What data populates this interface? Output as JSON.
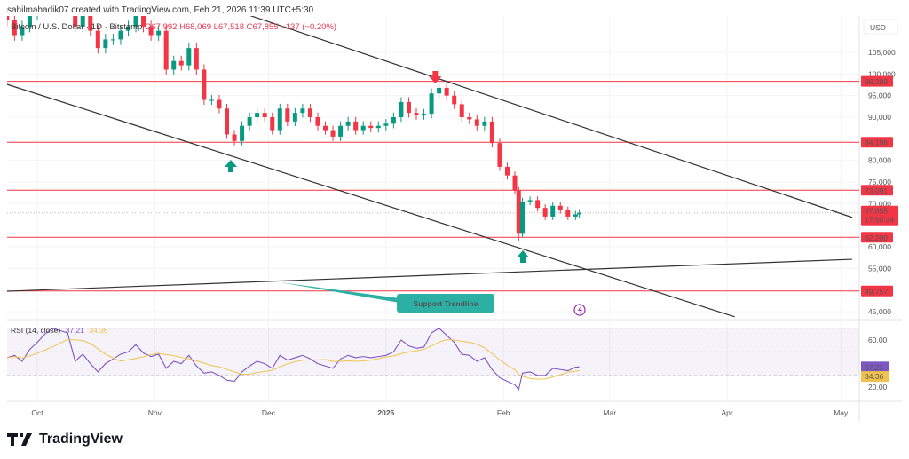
{
  "header": {
    "credit": "sahilmahadik07 created with TradingView.com, Feb 21, 2026 11:39 UTC+5:30"
  },
  "legend": {
    "symbol": "Bitcoin / U.S. Dollar · 1D · Bitstamp",
    "open": "O67,992",
    "high": "H68,069",
    "low": "L67,518",
    "close": "C67,855",
    "change": "−137 (−0.20%)"
  },
  "rsi_legend": {
    "label": "RSI (14, close)",
    "rsi": "37.21",
    "ma": "34.36"
  },
  "annotation": {
    "label": "Support Trendline"
  },
  "logo": {
    "text": "TradingView"
  },
  "colors": {
    "up": "#089981",
    "down": "#f23645",
    "level": "#f23645",
    "rsi": "#7e57c2",
    "rsi_ma": "#f0c34e",
    "annotation": "#2bb0a3"
  },
  "chart_data": [
    {
      "type": "candlestick",
      "currency_label": "USD",
      "ylim": [
        43000,
        117000
      ],
      "y_ticks": [
        45000,
        55000,
        60000,
        70000,
        75000,
        80000,
        90000,
        95000,
        100000,
        105000
      ],
      "y_tick_labels": [
        "45,000",
        "55,000",
        "60,000",
        "70,000",
        "75,000",
        "80,000",
        "90,000",
        "95,000",
        "100,000",
        "105,000"
      ],
      "x_ticks": [
        "2025-10-01",
        "2025-11-01",
        "2025-12-01",
        "2026-01-01",
        "2026-02-01",
        "2026-03-01",
        "2026-04-01",
        "2026-05-01"
      ],
      "x_tick_labels": [
        "Oct",
        "Nov",
        "Dec",
        "2026",
        "Feb",
        "Mar",
        "Apr",
        "May"
      ],
      "dates": [
        "2025-09-23",
        "2025-09-25",
        "2025-09-27",
        "2025-09-29",
        "2025-10-01",
        "2025-10-03",
        "2025-10-05",
        "2025-10-07",
        "2025-10-09",
        "2025-10-11",
        "2025-10-13",
        "2025-10-15",
        "2025-10-17",
        "2025-10-19",
        "2025-10-21",
        "2025-10-23",
        "2025-10-25",
        "2025-10-27",
        "2025-10-29",
        "2025-10-31",
        "2025-11-02",
        "2025-11-04",
        "2025-11-06",
        "2025-11-08",
        "2025-11-10",
        "2025-11-12",
        "2025-11-14",
        "2025-11-16",
        "2025-11-18",
        "2025-11-20",
        "2025-11-22",
        "2025-11-24",
        "2025-11-26",
        "2025-11-28",
        "2025-11-30",
        "2025-12-02",
        "2025-12-04",
        "2025-12-06",
        "2025-12-08",
        "2025-12-10",
        "2025-12-12",
        "2025-12-14",
        "2025-12-16",
        "2025-12-18",
        "2025-12-20",
        "2025-12-22",
        "2025-12-24",
        "2025-12-26",
        "2025-12-28",
        "2025-12-30",
        "2026-01-01",
        "2026-01-03",
        "2026-01-05",
        "2026-01-07",
        "2026-01-09",
        "2026-01-11",
        "2026-01-13",
        "2026-01-15",
        "2026-01-17",
        "2026-01-19",
        "2026-01-21",
        "2026-01-23",
        "2026-01-25",
        "2026-01-27",
        "2026-01-29",
        "2026-01-31",
        "2026-02-02",
        "2026-02-04",
        "2026-02-05",
        "2026-02-06",
        "2026-02-08",
        "2026-02-10",
        "2026-02-12",
        "2026-02-14",
        "2026-02-16",
        "2026-02-18",
        "2026-02-20",
        "2026-02-21"
      ],
      "close": [
        112500,
        109000,
        111000,
        114000,
        116000,
        120000,
        124000,
        121000,
        121000,
        111000,
        115000,
        110000,
        106000,
        108000,
        108000,
        110000,
        111000,
        114000,
        111000,
        109000,
        110000,
        101000,
        103000,
        102000,
        106000,
        101000,
        94000,
        94000,
        92000,
        86000,
        84500,
        88000,
        90000,
        91000,
        90000,
        87000,
        92000,
        89000,
        91000,
        92000,
        90000,
        88000,
        87000,
        85500,
        88000,
        89000,
        87000,
        88000,
        87500,
        88000,
        88500,
        90000,
        93500,
        91000,
        90500,
        90800,
        95500,
        96800,
        95000,
        93000,
        90000,
        89500,
        88000,
        89000,
        84000,
        78500,
        76500,
        73000,
        63000,
        70500,
        70800,
        69000,
        67000,
        69500,
        68500,
        67000,
        67500,
        67855
      ],
      "levels": [
        {
          "value": 98289,
          "label": "98,289"
        },
        {
          "value": 84196,
          "label": "84,196"
        },
        {
          "value": 73091,
          "label": "73,091"
        },
        {
          "value": 62200,
          "label": "62,200"
        },
        {
          "value": 49757,
          "label": "49,757"
        }
      ],
      "last_price": {
        "value": 67855,
        "label": "67,855",
        "countdown": "17:50:34"
      },
      "trendlines": [
        {
          "from": [
            "2025-11-14",
            117100
          ],
          "to": [
            "2026-05-04",
            66800
          ]
        },
        {
          "from": [
            "2025-09-23",
            97600
          ],
          "to": [
            "2026-04-03",
            43800
          ]
        },
        {
          "from": [
            "2025-09-23",
            49700
          ],
          "to": [
            "2026-05-04",
            57100
          ]
        }
      ],
      "markers": [
        {
          "type": "arrow-down",
          "date": "2026-01-14",
          "color": "#f23645"
        },
        {
          "type": "arrow-up",
          "date": "2025-11-21",
          "color": "#089981"
        },
        {
          "type": "arrow-up",
          "date": "2026-02-10",
          "color": "#089981"
        }
      ]
    },
    {
      "type": "line",
      "name": "RSI (14, close)",
      "ylim": [
        10,
        75
      ],
      "y_ticks": [
        20,
        60
      ],
      "y_tick_labels": [
        "20.00",
        "60.00"
      ],
      "bands": [
        30,
        50,
        70
      ],
      "rsi": [
        45,
        47,
        42,
        52,
        58,
        65,
        70,
        68,
        66,
        42,
        48,
        40,
        33,
        40,
        44,
        48,
        50,
        56,
        49,
        46,
        48,
        36,
        42,
        40,
        47,
        38,
        32,
        33,
        30,
        26,
        25,
        33,
        38,
        42,
        40,
        36,
        47,
        43,
        45,
        47,
        44,
        40,
        38,
        36,
        44,
        47,
        45,
        46,
        45,
        46,
        47,
        50,
        60,
        55,
        53,
        54,
        66,
        70,
        64,
        58,
        48,
        47,
        42,
        45,
        35,
        28,
        25,
        22,
        18,
        32,
        33,
        30,
        30,
        36,
        35,
        34,
        37,
        37.21
      ],
      "last_rsi": "37.21",
      "last_ma": "34.36"
    }
  ]
}
